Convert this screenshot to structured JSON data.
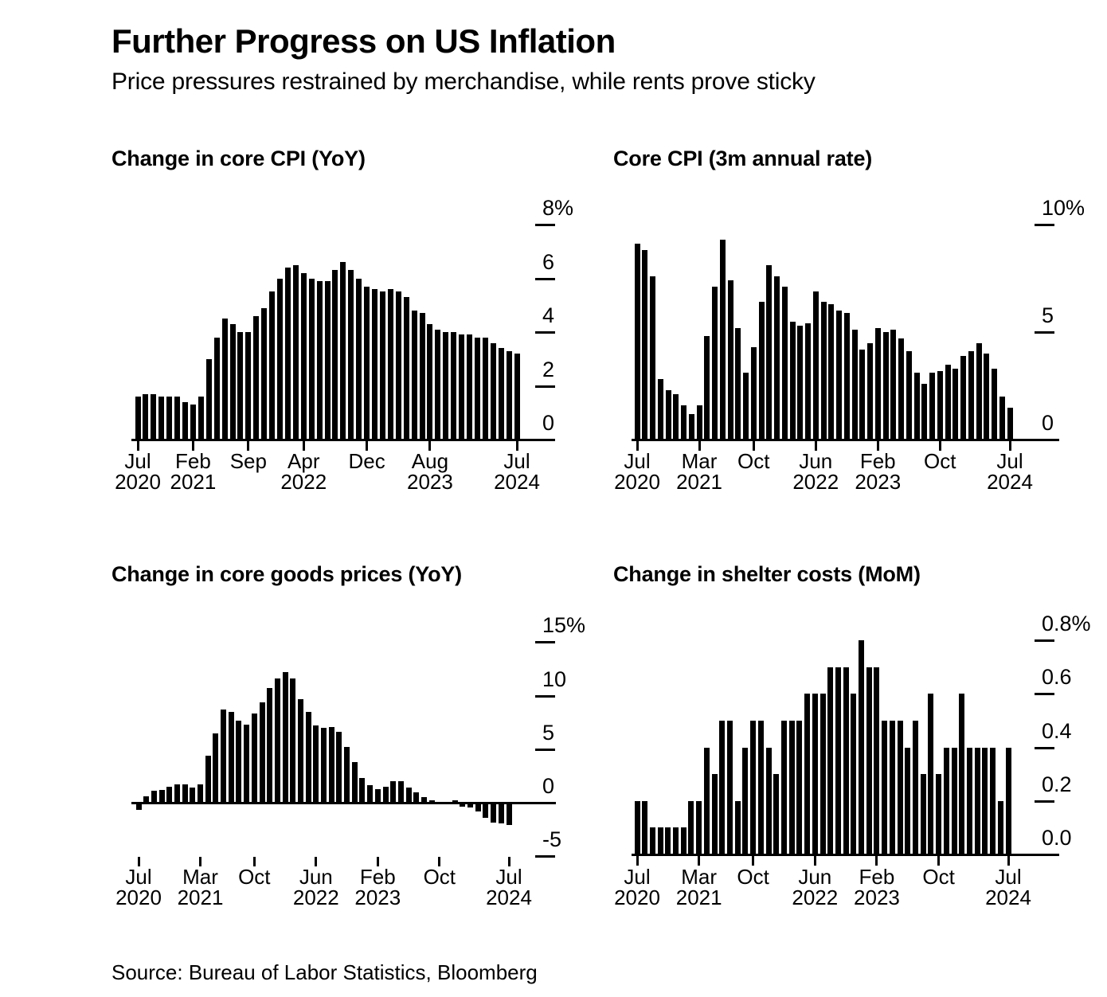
{
  "page": {
    "title": "Further Progress on US Inflation",
    "subtitle": "Price pressures restrained by merchandise, while rents prove sticky",
    "source": "Source: Bureau of Labor Statistics, Bloomberg"
  },
  "chart_data": {
    "type": "bar",
    "grid": "off",
    "legend": "none",
    "categories": [
      "Jul 2020",
      "Aug 2020",
      "Sep 2020",
      "Oct 2020",
      "Nov 2020",
      "Dec 2020",
      "Jan 2021",
      "Feb 2021",
      "Mar 2021",
      "Apr 2021",
      "May 2021",
      "Jun 2021",
      "Jul 2021",
      "Aug 2021",
      "Sep 2021",
      "Oct 2021",
      "Nov 2021",
      "Dec 2021",
      "Jan 2022",
      "Feb 2022",
      "Mar 2022",
      "Apr 2022",
      "May 2022",
      "Jun 2022",
      "Jul 2022",
      "Aug 2022",
      "Sep 2022",
      "Oct 2022",
      "Nov 2022",
      "Dec 2022",
      "Jan 2023",
      "Feb 2023",
      "Mar 2023",
      "Apr 2023",
      "May 2023",
      "Jun 2023",
      "Jul 2023",
      "Aug 2023",
      "Sep 2023",
      "Oct 2023",
      "Nov 2023",
      "Dec 2023",
      "Jan 2024",
      "Feb 2024",
      "Mar 2024",
      "Apr 2024",
      "May 2024",
      "Jun 2024",
      "Jul 2024"
    ],
    "bar_color": "#000000",
    "charts": [
      {
        "type": "bar",
        "title": "Change in core CPI (YoY)",
        "ylabel": "%",
        "ylim": [
          0,
          8
        ],
        "values": [
          1.6,
          1.7,
          1.7,
          1.6,
          1.6,
          1.6,
          1.4,
          1.3,
          1.6,
          3.0,
          3.8,
          4.5,
          4.3,
          4.0,
          4.0,
          4.6,
          4.9,
          5.5,
          6.0,
          6.4,
          6.5,
          6.2,
          6.0,
          5.9,
          5.9,
          6.3,
          6.6,
          6.3,
          6.0,
          5.7,
          5.6,
          5.5,
          5.6,
          5.5,
          5.3,
          4.8,
          4.7,
          4.3,
          4.1,
          4.0,
          4.0,
          3.9,
          3.9,
          3.8,
          3.8,
          3.6,
          3.4,
          3.3,
          3.2
        ],
        "y_axis": [
          {
            "label": "8%",
            "value": 8
          },
          {
            "label": "6",
            "value": 6
          },
          {
            "label": "4",
            "value": 4
          },
          {
            "label": "2",
            "value": 2
          },
          {
            "label": "0",
            "value": 0
          }
        ],
        "x_ticks": [
          {
            "month": "Jul",
            "year": "2020",
            "index": 0
          },
          {
            "month": "Feb",
            "year": "2021",
            "index": 7
          },
          {
            "month": "Sep",
            "year": "",
            "index": 14
          },
          {
            "month": "Apr",
            "year": "2022",
            "index": 21
          },
          {
            "month": "Dec",
            "year": "",
            "index": 29
          },
          {
            "month": "Aug",
            "year": "2023",
            "index": 37
          },
          {
            "month": "Jul",
            "year": "2024",
            "index": 48
          }
        ]
      },
      {
        "type": "bar",
        "title": "Core CPI (3m annual rate)",
        "ylabel": "%",
        "ylim": [
          0,
          10
        ],
        "values": [
          9.1,
          8.8,
          7.6,
          2.8,
          2.3,
          2.1,
          1.6,
          1.2,
          1.6,
          4.8,
          7.1,
          9.3,
          7.4,
          5.2,
          3.1,
          4.3,
          6.4,
          8.1,
          7.6,
          7.1,
          5.5,
          5.3,
          5.4,
          6.9,
          6.4,
          6.3,
          6.0,
          5.9,
          5.1,
          4.2,
          4.5,
          5.2,
          5.0,
          5.1,
          4.7,
          4.1,
          3.1,
          2.6,
          3.1,
          3.2,
          3.5,
          3.3,
          3.9,
          4.1,
          4.5,
          4.0,
          3.3,
          2.0,
          1.5
        ],
        "y_axis": [
          {
            "label": "10%",
            "value": 10
          },
          {
            "label": "5",
            "value": 5
          },
          {
            "label": "0",
            "value": 0
          }
        ],
        "x_ticks": [
          {
            "month": "Jul",
            "year": "2020",
            "index": 0
          },
          {
            "month": "Mar",
            "year": "2021",
            "index": 8
          },
          {
            "month": "Oct",
            "year": "",
            "index": 15
          },
          {
            "month": "Jun",
            "year": "2022",
            "index": 23
          },
          {
            "month": "Feb",
            "year": "2023",
            "index": 31
          },
          {
            "month": "Oct",
            "year": "",
            "index": 39
          },
          {
            "month": "Jul",
            "year": "2024",
            "index": 48
          }
        ]
      },
      {
        "type": "bar",
        "title": "Change in core goods prices (YoY)",
        "ylabel": "%",
        "ylim": [
          -5,
          15
        ],
        "values": [
          -0.5,
          0.6,
          1.1,
          1.2,
          1.5,
          1.7,
          1.7,
          1.4,
          1.7,
          4.4,
          6.5,
          8.7,
          8.5,
          7.7,
          7.3,
          8.3,
          9.4,
          10.7,
          11.6,
          12.2,
          11.6,
          9.7,
          8.5,
          7.2,
          7.0,
          7.1,
          6.6,
          5.2,
          3.8,
          2.3,
          1.6,
          1.3,
          1.5,
          2.0,
          2.0,
          1.4,
          1.0,
          0.5,
          0.2,
          0.1,
          0.1,
          0.2,
          -0.2,
          -0.3,
          -0.7,
          -1.3,
          -1.7,
          -1.8,
          -1.9
        ],
        "y_axis": [
          {
            "label": "15%",
            "value": 15
          },
          {
            "label": "10",
            "value": 10
          },
          {
            "label": "5",
            "value": 5
          },
          {
            "label": "0",
            "value": 0
          },
          {
            "label": "-5",
            "value": -5
          }
        ],
        "x_ticks": [
          {
            "month": "Jul",
            "year": "2020",
            "index": 0
          },
          {
            "month": "Mar",
            "year": "2021",
            "index": 8
          },
          {
            "month": "Oct",
            "year": "",
            "index": 15
          },
          {
            "month": "Jun",
            "year": "2022",
            "index": 23
          },
          {
            "month": "Feb",
            "year": "2023",
            "index": 31
          },
          {
            "month": "Oct",
            "year": "",
            "index": 39
          },
          {
            "month": "Jul",
            "year": "2024",
            "index": 48
          }
        ]
      },
      {
        "type": "bar",
        "title": "Change in shelter costs (MoM)",
        "ylabel": "%",
        "ylim": [
          0,
          0.8
        ],
        "values": [
          0.2,
          0.2,
          0.1,
          0.1,
          0.1,
          0.1,
          0.1,
          0.2,
          0.2,
          0.4,
          0.3,
          0.5,
          0.5,
          0.2,
          0.4,
          0.5,
          0.5,
          0.4,
          0.3,
          0.5,
          0.5,
          0.5,
          0.6,
          0.6,
          0.6,
          0.7,
          0.7,
          0.7,
          0.6,
          0.8,
          0.7,
          0.7,
          0.5,
          0.5,
          0.5,
          0.4,
          0.5,
          0.3,
          0.6,
          0.3,
          0.4,
          0.4,
          0.6,
          0.4,
          0.4,
          0.4,
          0.4,
          0.2,
          0.4
        ],
        "y_axis": [
          {
            "label": "0.8%",
            "value": 0.8
          },
          {
            "label": "0.6",
            "value": 0.6
          },
          {
            "label": "0.4",
            "value": 0.4
          },
          {
            "label": "0.2",
            "value": 0.2
          },
          {
            "label": "0.0",
            "value": 0
          }
        ],
        "x_ticks": [
          {
            "month": "Jul",
            "year": "2020",
            "index": 0
          },
          {
            "month": "Mar",
            "year": "2021",
            "index": 8
          },
          {
            "month": "Oct",
            "year": "",
            "index": 15
          },
          {
            "month": "Jun",
            "year": "2022",
            "index": 23
          },
          {
            "month": "Feb",
            "year": "2023",
            "index": 31
          },
          {
            "month": "Oct",
            "year": "",
            "index": 39
          },
          {
            "month": "Jul",
            "year": "2024",
            "index": 48
          }
        ]
      }
    ]
  }
}
